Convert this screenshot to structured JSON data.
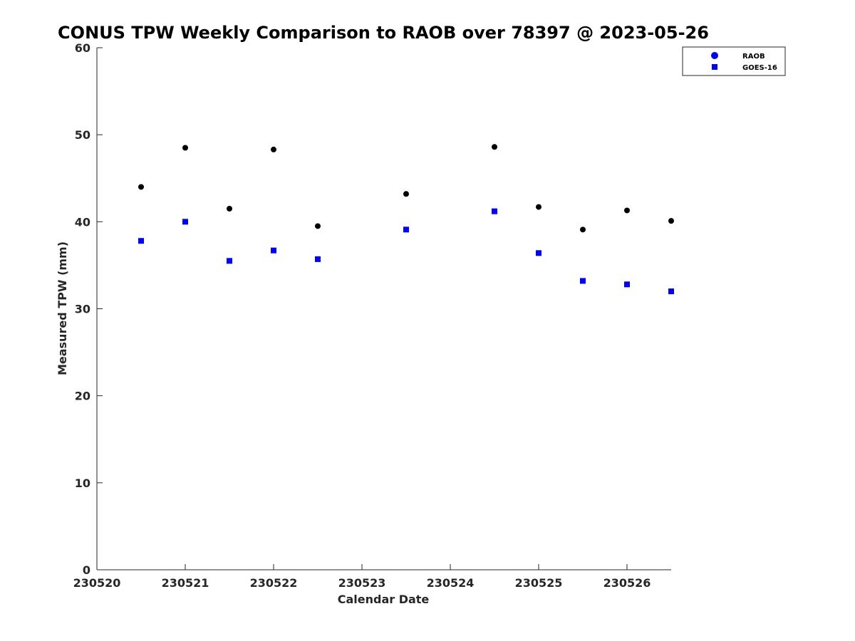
{
  "chart_data": {
    "type": "scatter",
    "title": "CONUS TPW Weekly Comparison to RAOB over 78397 @ 2023-05-26",
    "xlabel": "Calendar Date",
    "ylabel": "Measured TPW (mm)",
    "xlim": [
      "2023-05-20 00:00",
      "2023-05-26 12:00"
    ],
    "ylim": [
      0,
      60
    ],
    "x_tick_labels": [
      "230520",
      "230521",
      "230522",
      "230523",
      "230524",
      "230525",
      "230526"
    ],
    "y_ticks": [
      0,
      10,
      20,
      30,
      40,
      50,
      60
    ],
    "grid": false,
    "legend_position": "top-right",
    "series": [
      {
        "name": "RAOB",
        "marker": "circle",
        "color": "#000000",
        "legend_color": "#0000ff",
        "x": [
          "2023-05-20 12:00",
          "2023-05-21 00:00",
          "2023-05-21 12:00",
          "2023-05-22 00:00",
          "2023-05-22 12:00",
          "2023-05-23 12:00",
          "2023-05-24 12:00",
          "2023-05-25 00:00",
          "2023-05-25 12:00",
          "2023-05-26 00:00",
          "2023-05-26 12:00"
        ],
        "values": [
          44.0,
          48.5,
          41.5,
          48.3,
          39.5,
          43.2,
          48.6,
          41.7,
          39.1,
          41.3,
          40.1
        ]
      },
      {
        "name": "GOES-16",
        "marker": "square",
        "color": "#0000ff",
        "legend_color": "#0000ff",
        "x": [
          "2023-05-20 12:00",
          "2023-05-21 00:00",
          "2023-05-21 12:00",
          "2023-05-22 00:00",
          "2023-05-22 12:00",
          "2023-05-23 12:00",
          "2023-05-24 12:00",
          "2023-05-25 00:00",
          "2023-05-25 12:00",
          "2023-05-26 00:00",
          "2023-05-26 12:00"
        ],
        "values": [
          37.8,
          40.0,
          35.5,
          36.7,
          35.7,
          39.1,
          41.2,
          36.4,
          33.2,
          32.8,
          32.0
        ]
      }
    ]
  }
}
